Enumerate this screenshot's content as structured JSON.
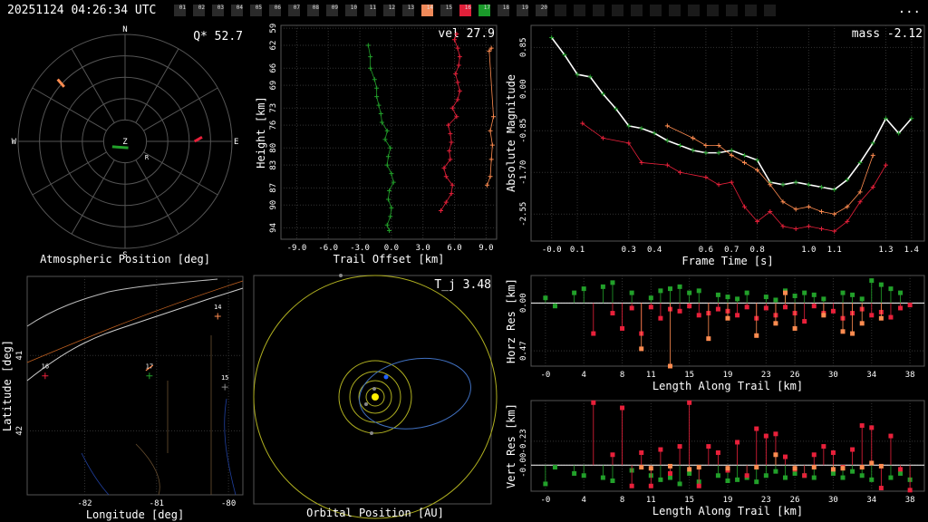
{
  "header": {
    "timestamp": "20251124 04:26:34 UTC",
    "menu": "...",
    "stations": [
      {
        "label": "01",
        "color": "#2a2a2a"
      },
      {
        "label": "02",
        "color": "#2a2a2a"
      },
      {
        "label": "03",
        "color": "#2a2a2a"
      },
      {
        "label": "04",
        "color": "#2a2a2a"
      },
      {
        "label": "05",
        "color": "#2a2a2a"
      },
      {
        "label": "06",
        "color": "#2a2a2a"
      },
      {
        "label": "07",
        "color": "#2a2a2a"
      },
      {
        "label": "08",
        "color": "#2a2a2a"
      },
      {
        "label": "09",
        "color": "#2a2a2a"
      },
      {
        "label": "10",
        "color": "#2a2a2a"
      },
      {
        "label": "11",
        "color": "#2a2a2a"
      },
      {
        "label": "12",
        "color": "#2a2a2a"
      },
      {
        "label": "13",
        "color": "#2a2a2a"
      },
      {
        "label": "14",
        "color": "#f08a5a"
      },
      {
        "label": "15",
        "color": "#2a2a2a"
      },
      {
        "label": "16",
        "color": "#e0203a"
      },
      {
        "label": "17",
        "color": "#1a9a2a"
      },
      {
        "label": "18",
        "color": "#2a2a2a"
      },
      {
        "label": "19",
        "color": "#2a2a2a"
      },
      {
        "label": "20",
        "color": "#2a2a2a"
      },
      {
        "label": "",
        "color": "#1a1a1a"
      },
      {
        "label": "",
        "color": "#1a1a1a"
      },
      {
        "label": "",
        "color": "#1a1a1a"
      },
      {
        "label": "",
        "color": "#1a1a1a"
      },
      {
        "label": "",
        "color": "#1a1a1a"
      },
      {
        "label": "",
        "color": "#1a1a1a"
      },
      {
        "label": "",
        "color": "#1a1a1a"
      },
      {
        "label": "",
        "color": "#1a1a1a"
      },
      {
        "label": "",
        "color": "#1a1a1a"
      },
      {
        "label": "",
        "color": "#1a1a1a"
      },
      {
        "label": "",
        "color": "#1a1a1a"
      },
      {
        "label": "",
        "color": "#1a1a1a"
      }
    ]
  },
  "colors": {
    "s14": "#ff8c50",
    "s16": "#e8203a",
    "s17": "#22a02a",
    "grid": "#444444",
    "axis": "#ffffff"
  },
  "chart_data": [
    {
      "id": "atmospheric",
      "type": "scatter",
      "title": "Atmospheric Position [deg]",
      "annotation": "Q* 52.7",
      "compass": {
        "n": "N",
        "s": "S",
        "e": "E",
        "w": "W",
        "z": "Z",
        "r": "R"
      },
      "tracks": [
        {
          "station": "14",
          "points": [
            [
              -63,
              58
            ],
            [
              -57,
              51
            ]
          ]
        },
        {
          "station": "16",
          "points": [
            [
              65,
              0
            ],
            [
              72,
              4
            ]
          ]
        },
        {
          "station": "17",
          "points": [
            [
              -12,
              -5
            ],
            [
              3,
              -6
            ]
          ]
        }
      ]
    },
    {
      "id": "trail",
      "type": "scatter",
      "title": "",
      "annotation": "vel 27.9",
      "xlabel": "Trail Offset [km]",
      "ylabel": "Height [km]",
      "xlim": [
        -10.5,
        10
      ],
      "ylim": [
        58.5,
        96
      ],
      "xticks": [
        "-9.0",
        "-6.0",
        "-3.0",
        "0.0",
        "3.0",
        "6.0",
        "9.0"
      ],
      "yticks": [
        "59",
        "62",
        "66",
        "69",
        "73",
        "76",
        "80",
        "83",
        "87",
        "90",
        "94"
      ],
      "series": [
        {
          "station": "17",
          "x": [
            -0.2,
            -0.4,
            -0.1,
            0,
            -0.3,
            -0.2,
            0.2,
            0,
            -0.4,
            -0.3,
            -0.1,
            -0.6,
            -0.4,
            -0.9,
            -1.0,
            -1.2,
            -1.4,
            -1.4,
            -1.6,
            -2.0,
            -2.0,
            -2.2
          ],
          "y": [
            94.5,
            93.5,
            92,
            90.5,
            89,
            87.5,
            86,
            84.5,
            83,
            81.5,
            80,
            78.5,
            77,
            75.5,
            74,
            72.5,
            71,
            69.5,
            68,
            66,
            64,
            62
          ]
        },
        {
          "station": "16",
          "x": [
            4.7,
            5.2,
            5.7,
            5.8,
            5.2,
            5.0,
            5.6,
            5.5,
            5.7,
            5.6,
            5.4,
            6.2,
            5.8,
            6.3,
            6.5,
            6.3,
            6.1,
            6.4,
            6.5,
            6.3,
            6.0,
            6.2
          ],
          "y": [
            91,
            89.5,
            88,
            86.5,
            85,
            83.5,
            82,
            80.5,
            79,
            77.5,
            76,
            74.5,
            73,
            71.5,
            70,
            68.5,
            67,
            65.5,
            64,
            62.5,
            61,
            60
          ]
        },
        {
          "station": "14",
          "x": [
            9.1,
            9.4,
            9.5,
            9.6,
            9.4,
            9.7,
            9.3,
            9.5
          ],
          "y": [
            86.5,
            85,
            82,
            79.5,
            77,
            74.5,
            63,
            62.5
          ]
        }
      ]
    },
    {
      "id": "magnitude",
      "type": "line",
      "title": "",
      "annotation": "mass -2.12",
      "xlabel": "Frame Time [s]",
      "ylabel": "Absolute Magnitude",
      "xlim": [
        -0.08,
        1.45
      ],
      "ylim": [
        1.3,
        -3.1
      ],
      "xticks": [
        "-0.0",
        "0.1",
        "0.3",
        "0.4",
        "0.6",
        "0.7",
        "0.8",
        "1.0",
        "1.1",
        "1.3",
        "1.4"
      ],
      "yticks": [
        "0.85",
        "0.00",
        "-0.85",
        "-1.70",
        "-2.55"
      ],
      "series": [
        {
          "station": "17",
          "t": [
            0,
            0.05,
            0.1,
            0.15,
            0.2,
            0.25,
            0.3,
            0.35,
            0.4,
            0.45,
            0.5,
            0.55,
            0.6,
            0.65,
            0.7,
            0.75,
            0.8,
            0.85,
            0.9,
            0.95,
            1.0,
            1.05,
            1.1,
            1.15,
            1.2,
            1.25,
            1.3,
            1.35,
            1.4
          ],
          "mag": [
            1.05,
            0.7,
            0.3,
            0.25,
            -0.1,
            -0.4,
            -0.75,
            -0.8,
            -0.9,
            -1.05,
            -1.15,
            -1.25,
            -1.3,
            -1.3,
            -1.25,
            -1.35,
            -1.45,
            -1.9,
            -1.95,
            -1.9,
            -1.95,
            -2.0,
            -2.05,
            -1.85,
            -1.5,
            -1.1,
            -0.6,
            -0.9,
            -0.6
          ]
        },
        {
          "station": "16",
          "t": [
            0.12,
            0.2,
            0.3,
            0.35,
            0.45,
            0.5,
            0.6,
            0.65,
            0.7,
            0.75,
            0.8,
            0.85,
            0.9,
            0.95,
            1.0,
            1.05,
            1.1,
            1.15,
            1.2,
            1.25,
            1.3
          ],
          "mag": [
            -0.7,
            -1.0,
            -1.1,
            -1.5,
            -1.55,
            -1.7,
            -1.8,
            -1.95,
            -1.9,
            -2.4,
            -2.7,
            -2.5,
            -2.8,
            -2.85,
            -2.8,
            -2.85,
            -2.9,
            -2.7,
            -2.3,
            -2.0,
            -1.55
          ]
        },
        {
          "station": "14",
          "t": [
            0.45,
            0.55,
            0.6,
            0.65,
            0.7,
            0.75,
            0.8,
            0.85,
            0.9,
            0.95,
            1.0,
            1.05,
            1.1,
            1.15,
            1.2,
            1.25
          ],
          "mag": [
            -0.75,
            -1.0,
            -1.15,
            -1.15,
            -1.35,
            -1.5,
            -1.65,
            -1.95,
            -2.3,
            -2.45,
            -2.4,
            -2.5,
            -2.55,
            -2.4,
            -2.1,
            -1.35
          ]
        }
      ]
    },
    {
      "id": "map",
      "type": "scatter",
      "title": "",
      "annotation": "",
      "xlabel": "Longitude [deg]",
      "ylabel": "Latitude [deg]",
      "xlim": [
        -82.8,
        -79.8
      ],
      "ylim": [
        39.95,
        42.85
      ],
      "xticks": [
        "-82",
        "-81",
        "-80"
      ],
      "yticks": [
        "41",
        "42"
      ],
      "stations": [
        {
          "label": "16",
          "lon": -82.55,
          "lat": 41.27,
          "station": "16"
        },
        {
          "label": "17",
          "lon": -81.1,
          "lat": 41.27,
          "station": "17"
        },
        {
          "label": "15",
          "lon": -80.05,
          "lat": 41.42,
          "station": "15"
        },
        {
          "label": "14",
          "lon": -80.15,
          "lat": 40.48,
          "station": "14"
        }
      ],
      "meteor_track": [
        [
          -81.15,
          41.2
        ],
        [
          -81.05,
          41.13
        ]
      ]
    },
    {
      "id": "orbit",
      "type": "scatter",
      "title": "Orbital Position [AU]",
      "annotation": "T_j 3.48"
    },
    {
      "id": "horz_res",
      "type": "scatter",
      "xlabel": "Length Along Trail [km]",
      "ylabel": "Horz Res [km]",
      "xlim": [
        -1.5,
        39.5
      ],
      "ylim": [
        -0.27,
        0.62
      ],
      "xticks": [
        "-0",
        "4",
        "8",
        "11",
        "15",
        "19",
        "23",
        "26",
        "30",
        "34",
        "38"
      ],
      "yticks": [
        "0.00",
        "0.47"
      ],
      "series": [
        {
          "station": "17",
          "x": [
            0,
            1,
            3,
            4,
            6,
            7,
            9,
            11,
            12,
            13,
            14,
            15,
            16,
            18,
            19,
            20,
            21,
            23,
            24,
            25,
            26,
            27,
            28,
            29,
            31,
            32,
            33,
            34,
            35,
            36,
            37
          ],
          "y": [
            -0.05,
            0.03,
            -0.1,
            -0.14,
            -0.16,
            -0.2,
            -0.1,
            -0.05,
            -0.12,
            -0.14,
            -0.16,
            -0.1,
            -0.12,
            -0.08,
            -0.06,
            -0.04,
            -0.1,
            -0.06,
            -0.03,
            -0.12,
            -0.07,
            -0.1,
            -0.08,
            -0.04,
            -0.1,
            -0.08,
            -0.04,
            -0.22,
            -0.18,
            -0.14,
            -0.1
          ]
        },
        {
          "station": "16",
          "x": [
            5,
            7,
            8,
            9,
            10,
            11,
            12,
            13,
            14,
            15,
            16,
            17,
            18,
            19,
            20,
            21,
            22,
            23,
            24,
            25,
            26,
            27,
            28,
            29,
            30,
            31,
            32,
            33,
            34,
            35,
            36,
            37,
            38
          ],
          "y": [
            0.3,
            0.1,
            0.25,
            0.05,
            0.3,
            0.04,
            0.15,
            0.06,
            0.08,
            0.03,
            0.12,
            0.1,
            0.06,
            0.08,
            0.12,
            0.04,
            0.15,
            0.05,
            0.12,
            0.04,
            0.1,
            0.18,
            0.03,
            0.1,
            0.08,
            0.15,
            0.1,
            0.06,
            0.12,
            0.09,
            0.14,
            0.05,
            0.02
          ]
        },
        {
          "station": "14",
          "x": [
            10,
            13,
            17,
            19,
            22,
            24,
            25,
            26,
            29,
            31,
            32,
            33,
            35
          ],
          "y": [
            0.45,
            0.62,
            0.35,
            0.15,
            0.32,
            0.2,
            -0.1,
            0.25,
            0.12,
            0.28,
            0.3,
            0.2,
            0.15
          ]
        }
      ]
    },
    {
      "id": "vert_res",
      "type": "scatter",
      "xlabel": "Length Along Trail [km]",
      "ylabel": "Vert Res [km]",
      "xlim": [
        -1.5,
        39.5
      ],
      "ylim": [
        -0.62,
        0.25
      ],
      "xticks": [
        "-0",
        "4",
        "8",
        "11",
        "15",
        "19",
        "23",
        "26",
        "30",
        "34",
        "38"
      ],
      "yticks": [
        "-0.00",
        "-0.23"
      ],
      "series": [
        {
          "station": "17",
          "x": [
            0,
            1,
            3,
            4,
            6,
            7,
            9,
            11,
            12,
            13,
            14,
            15,
            16,
            18,
            19,
            20,
            21,
            22,
            23,
            24,
            25,
            26,
            27,
            28,
            30,
            31,
            32,
            33,
            34,
            36,
            37,
            38
          ],
          "y": [
            0.18,
            0.02,
            0.08,
            0.1,
            0.12,
            0.15,
            0.05,
            0.1,
            0.14,
            0.12,
            0.18,
            0.08,
            0.16,
            0.1,
            0.15,
            0.14,
            0.12,
            0.16,
            0.1,
            0.06,
            0.12,
            0.08,
            0.1,
            0.12,
            0.08,
            0.12,
            0.06,
            0.1,
            0.14,
            0.12,
            0.08,
            0.14
          ]
        },
        {
          "station": "16",
          "x": [
            5,
            7,
            8,
            9,
            10,
            11,
            12,
            13,
            14,
            15,
            16,
            17,
            18,
            19,
            20,
            21,
            22,
            23,
            24,
            25,
            26,
            27,
            28,
            29,
            30,
            31,
            32,
            33,
            34,
            35,
            36,
            37,
            38
          ],
          "y": [
            -0.6,
            -0.1,
            -0.55,
            0.2,
            -0.12,
            0.2,
            -0.15,
            0.08,
            -0.18,
            -0.6,
            0.2,
            -0.18,
            -0.12,
            0.05,
            -0.22,
            0.1,
            -0.35,
            -0.28,
            -0.3,
            -0.08,
            0.04,
            0.1,
            -0.1,
            -0.18,
            -0.12,
            0.02,
            -0.15,
            -0.38,
            -0.36,
            0.22,
            -0.28,
            0.04,
            0.24
          ]
        },
        {
          "station": "14",
          "x": [
            10,
            11,
            13,
            15,
            16,
            19,
            22,
            24,
            26,
            28,
            30,
            31,
            33,
            34,
            35
          ],
          "y": [
            0.02,
            0.03,
            0.01,
            0.04,
            0.02,
            0.03,
            0.02,
            -0.1,
            0.03,
            0.02,
            0.04,
            0.03,
            0.02,
            -0.02,
            0.01
          ]
        }
      ]
    }
  ]
}
